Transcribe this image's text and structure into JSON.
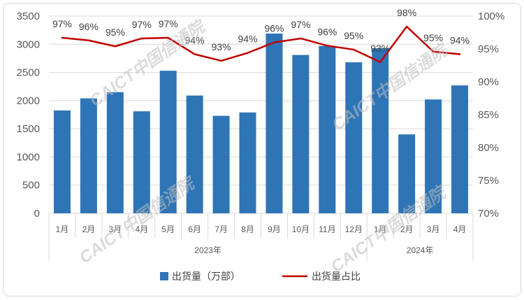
{
  "chart_data": {
    "type": "bar",
    "category_groups": [
      {
        "label": "2023年",
        "categories": [
          "1月",
          "2月",
          "3月",
          "4月",
          "5月",
          "6月",
          "7月",
          "8月",
          "9月",
          "10月",
          "11月",
          "12月"
        ]
      },
      {
        "label": "2024年",
        "categories": [
          "1月",
          "2月",
          "3月",
          "4月"
        ]
      }
    ],
    "series": [
      {
        "name": "出货量（万部）",
        "type": "bar",
        "axis": "left",
        "color": "#2E75B6",
        "values": [
          1825,
          2040,
          2150,
          1810,
          2530,
          2090,
          1730,
          1790,
          3190,
          2810,
          2970,
          2680,
          2930,
          1400,
          2020,
          2270
        ]
      },
      {
        "name": "出货量占比",
        "type": "line",
        "axis": "right",
        "color": "#C00000",
        "values": [
          96.7,
          96.3,
          95.4,
          96.6,
          96.7,
          94.2,
          93.2,
          94.4,
          96.0,
          96.6,
          95.5,
          94.9,
          93.0,
          98.4,
          94.6,
          94.2
        ],
        "data_labels": [
          "97%",
          "96%",
          "95%",
          "97%",
          "97%",
          "94%",
          "93%",
          "94%",
          "96%",
          "97%",
          "96%",
          "95%",
          "93%",
          "98%",
          "95%",
          "94%"
        ]
      }
    ],
    "y_axes": {
      "left": {
        "min": 0,
        "max": 3500,
        "ticks": [
          "0",
          "500",
          "1000",
          "1500",
          "2000",
          "2500",
          "3000",
          "3500"
        ]
      },
      "right": {
        "min": 70,
        "max": 100,
        "ticks": [
          "70%",
          "75%",
          "80%",
          "85%",
          "90%",
          "95%",
          "100%"
        ]
      }
    },
    "grid": {
      "horizontal": true,
      "vertical": false
    },
    "legend": {
      "position": "bottom"
    }
  },
  "watermark": {
    "text": "CAICT中国信通院"
  }
}
